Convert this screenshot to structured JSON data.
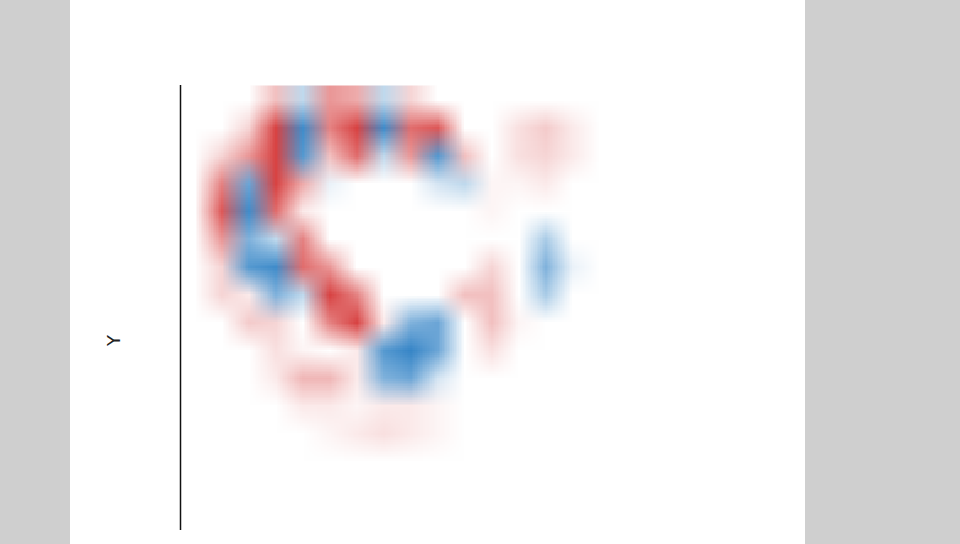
{
  "chart_data": {
    "type": "heatmap",
    "y_label": "Y",
    "xlim": [
      0,
      20
    ],
    "ylim": [
      0,
      16
    ],
    "tick_labels": false,
    "zlim": [
      -1,
      1
    ],
    "colors": [
      "#2b7fc4",
      "#ffffff",
      "#d42e2e"
    ],
    "cells": [
      [
        0,
        0,
        0,
        0.3,
        -0.3,
        0.5,
        0.4,
        -0.3,
        0.2,
        0,
        0,
        0,
        0,
        0,
        0,
        0,
        0,
        0,
        0,
        0
      ],
      [
        0,
        0,
        0.2,
        0.9,
        -0.9,
        0.6,
        0.9,
        -0.9,
        0.7,
        0.8,
        0,
        0,
        0.15,
        0.25,
        0.1,
        0,
        0,
        0,
        0,
        0
      ],
      [
        0,
        0.2,
        0.5,
        0.9,
        -0.8,
        0.3,
        0.7,
        -0.3,
        0.5,
        -0.8,
        0.3,
        0,
        0.15,
        0.2,
        0.1,
        0,
        0,
        0,
        0,
        0
      ],
      [
        0,
        0.6,
        -0.7,
        0.9,
        0.4,
        -0.1,
        0,
        0,
        0,
        -0.2,
        -0.3,
        0.05,
        0.05,
        0.1,
        0,
        0,
        0,
        0,
        0,
        0
      ],
      [
        0,
        0.8,
        -0.9,
        0.7,
        0.1,
        0,
        0,
        0,
        0,
        0,
        0,
        0.05,
        0,
        0,
        0,
        0,
        0,
        0,
        0,
        0
      ],
      [
        0,
        0.5,
        -0.6,
        -0.3,
        0.6,
        0,
        0,
        0,
        0,
        0,
        0,
        0,
        0,
        -0.4,
        0,
        0,
        0,
        0,
        0,
        0
      ],
      [
        0,
        0.2,
        -0.8,
        -0.9,
        0.7,
        0.5,
        0,
        0,
        0,
        0,
        0,
        0.2,
        0,
        -0.6,
        -0.1,
        0,
        0,
        0,
        0,
        0
      ],
      [
        0,
        0.2,
        0.1,
        -0.6,
        -0.3,
        0.9,
        0.6,
        0,
        0,
        0,
        0.3,
        0.3,
        0,
        -0.4,
        0,
        0,
        0,
        0,
        0,
        0
      ],
      [
        0,
        0,
        0.25,
        0.2,
        0,
        0.6,
        0.9,
        0.1,
        -0.6,
        -0.7,
        0,
        0.3,
        0.05,
        0,
        0,
        0,
        0,
        0,
        0,
        0
      ],
      [
        0,
        0,
        0,
        0.15,
        0.05,
        0,
        0.1,
        -0.8,
        -0.95,
        -0.7,
        0,
        0.15,
        0,
        0,
        0,
        0,
        0,
        0,
        0,
        0
      ],
      [
        0,
        0,
        0,
        0.1,
        0.35,
        0.35,
        0.1,
        -0.6,
        -0.7,
        -0.2,
        0,
        0,
        0,
        0,
        0,
        0,
        0,
        0,
        0,
        0
      ],
      [
        0,
        0,
        0,
        0,
        0.1,
        0.1,
        0.05,
        0.1,
        0.1,
        0.05,
        0,
        0,
        0,
        0,
        0,
        0,
        0,
        0,
        0,
        0
      ],
      [
        0,
        0,
        0,
        0,
        0,
        0.05,
        0.1,
        0.15,
        0.1,
        0.05,
        0,
        0,
        0,
        0,
        0,
        0,
        0,
        0,
        0,
        0
      ],
      [
        0,
        0,
        0,
        0,
        0,
        0,
        0,
        0,
        0,
        0,
        0,
        0,
        0,
        0,
        0,
        0,
        0,
        0,
        0,
        0
      ],
      [
        0,
        0,
        0,
        0,
        0,
        0,
        0,
        0,
        0,
        0,
        0,
        0,
        0,
        0,
        0,
        0,
        0,
        0,
        0,
        0
      ],
      [
        0,
        0,
        0,
        0,
        0,
        0,
        0,
        0,
        0,
        0,
        0,
        0,
        0,
        0,
        0,
        0,
        0,
        0,
        0,
        0
      ]
    ]
  }
}
